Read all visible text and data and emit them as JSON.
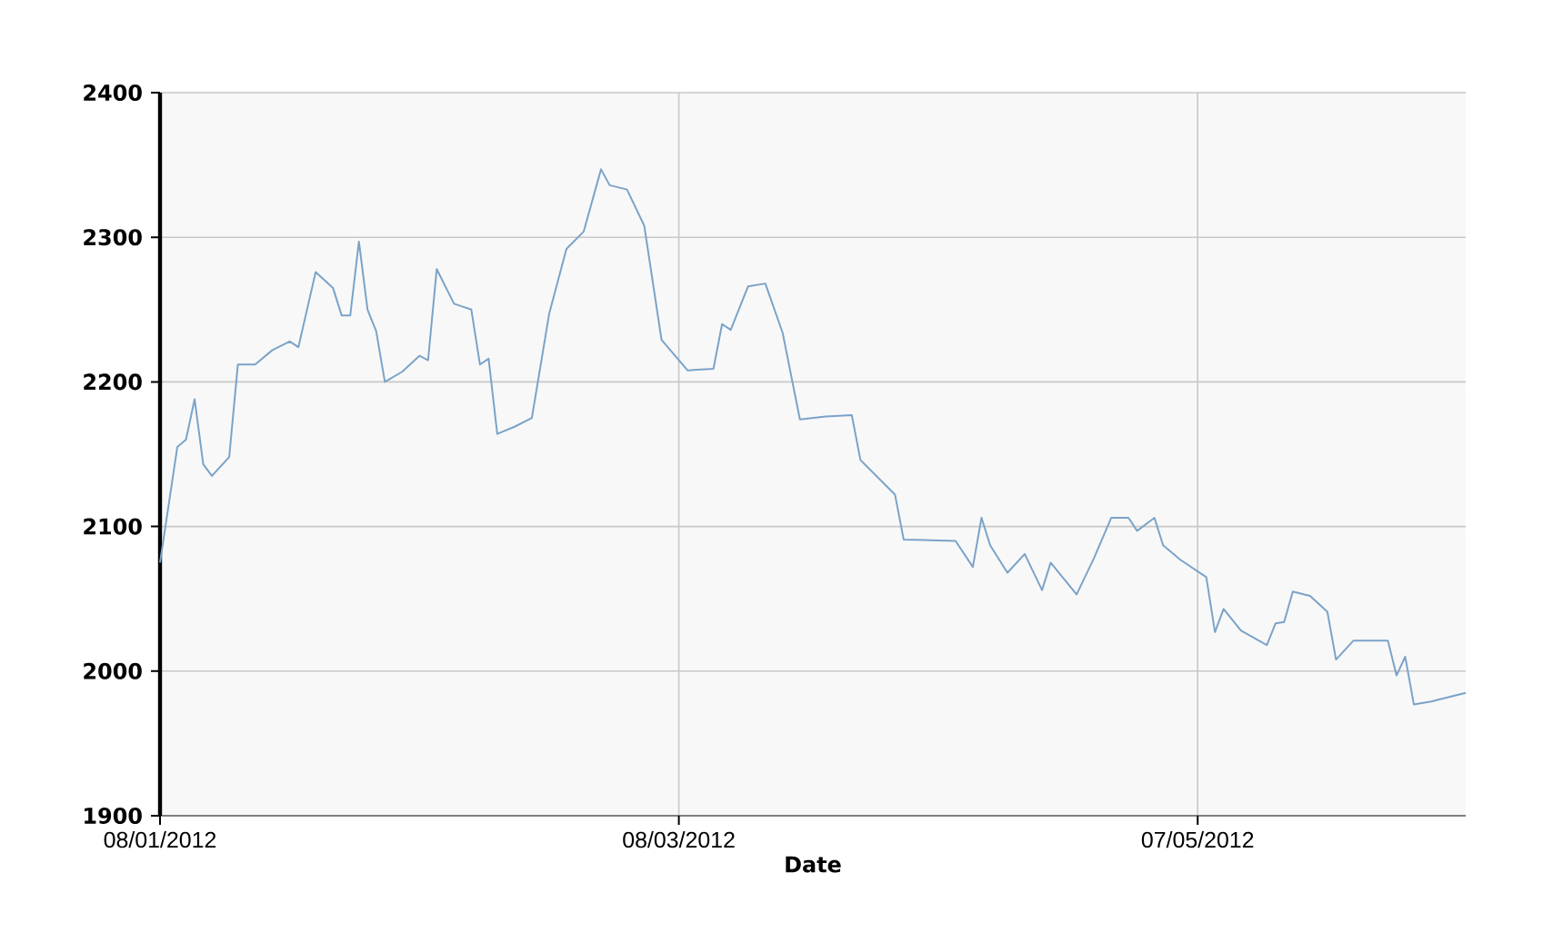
{
  "chart_data": {
    "type": "line",
    "xlabel": "Date",
    "x": [
      "2012-01-08",
      "2012-01-10",
      "2012-01-11",
      "2012-01-12",
      "2012-01-13",
      "2012-01-14",
      "2012-01-16",
      "2012-01-17",
      "2012-01-19",
      "2012-01-21",
      "2012-01-23",
      "2012-01-24",
      "2012-01-26",
      "2012-01-28",
      "2012-01-29",
      "2012-01-30",
      "2012-01-31",
      "2012-02-01",
      "2012-02-02",
      "2012-02-03",
      "2012-02-05",
      "2012-02-07",
      "2012-02-08",
      "2012-02-09",
      "2012-02-11",
      "2012-02-13",
      "2012-02-14",
      "2012-02-15",
      "2012-02-16",
      "2012-02-18",
      "2012-02-20",
      "2012-02-22",
      "2012-02-24",
      "2012-02-26",
      "2012-02-28",
      "2012-02-29",
      "2012-03-02",
      "2012-03-04",
      "2012-03-06",
      "2012-03-09",
      "2012-03-12",
      "2012-03-13",
      "2012-03-14",
      "2012-03-16",
      "2012-03-18",
      "2012-03-20",
      "2012-03-22",
      "2012-03-25",
      "2012-03-28",
      "2012-03-29",
      "2012-04-02",
      "2012-04-03",
      "2012-04-09",
      "2012-04-11",
      "2012-04-12",
      "2012-04-13",
      "2012-04-15",
      "2012-04-17",
      "2012-04-19",
      "2012-04-20",
      "2012-04-23",
      "2012-04-25",
      "2012-04-27",
      "2012-04-29",
      "2012-04-30",
      "2012-05-02",
      "2012-05-03",
      "2012-05-05",
      "2012-05-08",
      "2012-05-09",
      "2012-05-10",
      "2012-05-12",
      "2012-05-15",
      "2012-05-16",
      "2012-05-17",
      "2012-05-18",
      "2012-05-20",
      "2012-05-22",
      "2012-05-23",
      "2012-05-25",
      "2012-05-29",
      "2012-05-30",
      "2012-05-31",
      "2012-06-01",
      "2012-06-03",
      "2012-06-07"
    ],
    "series": [
      {
        "color": "#7ba3c8",
        "values": [
          2075,
          2155,
          2160,
          2188,
          2143,
          2135,
          2148,
          2212,
          2212,
          2222,
          2228,
          2224,
          2276,
          2265,
          2246,
          2246,
          2297,
          2250,
          2235,
          2200,
          2207,
          2218,
          2215,
          2278,
          2254,
          2250,
          2212,
          2216,
          2164,
          2169,
          2175,
          2247,
          2292,
          2304,
          2347,
          2336,
          2333,
          2308,
          2229,
          2208,
          2209,
          2240,
          2236,
          2266,
          2268,
          2234,
          2174,
          2176,
          2177,
          2146,
          2122,
          2091,
          2090,
          2072,
          2106,
          2087,
          2068,
          2081,
          2056,
          2075,
          2053,
          2078,
          2106,
          2106,
          2097,
          2106,
          2087,
          2077,
          2065,
          2027,
          2043,
          2028,
          2018,
          2033,
          2034,
          2055,
          2052,
          2041,
          2008,
          2021,
          2021,
          1997,
          2010,
          1977,
          1979,
          1985
        ]
      }
    ],
    "xlim": [
      "2012-01-08",
      "2012-06-07"
    ],
    "xticks": [
      {
        "value": "2012-01-08",
        "label": "08/01/2012"
      },
      {
        "value": "2012-03-08",
        "label": "08/03/2012"
      },
      {
        "value": "2012-05-07",
        "label": "07/05/2012"
      }
    ],
    "ylim": [
      1900,
      2400
    ],
    "yticks": [
      1900,
      2000,
      2100,
      2200,
      2300,
      2400
    ],
    "grid": true,
    "legend": false,
    "marker": "none",
    "line_style": "solid"
  }
}
